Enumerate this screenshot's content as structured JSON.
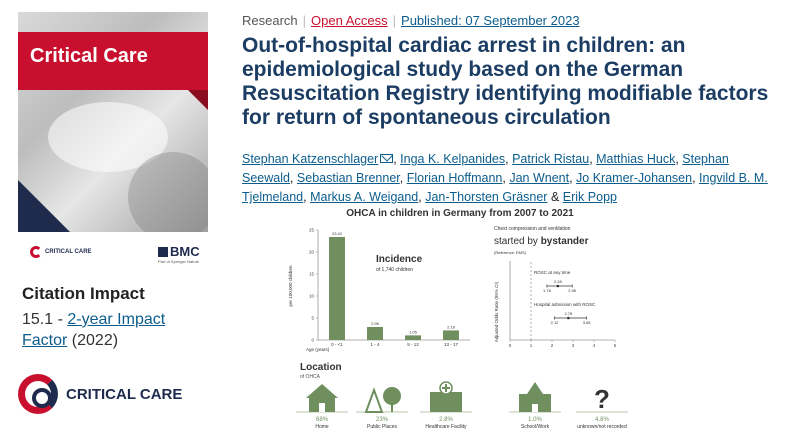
{
  "cover": {
    "journal_name": "Critical Care",
    "publisher_small_logo_text": "CRITICAL CARE",
    "publisher_logo_text": "BMC",
    "publisher_logo_subtitle": "Part of Springer Nature"
  },
  "citation": {
    "heading": "Citation Impact",
    "value": "15.1",
    "dash": "-",
    "link_text": "2-year Impact Factor",
    "year": "(2022)"
  },
  "brand_logo": {
    "text": "CRITICAL CARE"
  },
  "article": {
    "type": "Research",
    "access": "Open Access",
    "published": "Published: 07 September 2023",
    "title": "Out-of-hospital cardiac arrest in children: an epidemiological study based on the German Resuscitation Registry identifying modifiable factors for return of spontaneous circulation",
    "authors": [
      "Stephan Katzenschlager",
      "Inga K. Kelpanides",
      "Patrick Ristau",
      "Matthias Huck",
      "Stephan Seewald",
      "Sebastian Brenner",
      "Florian Hoffmann",
      "Jan Wnent",
      "Jo Kramer-Johansen",
      "Ingvild B. M. Tjelmeland",
      "Markus A. Weigand",
      "Jan-Thorsten Gräsner",
      "Erik Popp"
    ],
    "author_joiner": "&"
  },
  "infographic": {
    "title": "OHCA in children in Germany from 2007 to 2021",
    "incidence_heading": "Incidence",
    "incidence_sub": "of 1,740 children",
    "y_axis_label": "per 100,000 children",
    "x_axis_label": "Age (years)",
    "forest_header_small": "Chest compression and ventilation",
    "forest_header_big_prefix": "started by",
    "forest_header_big_bold": "bystander",
    "forest_reference": "(Reference: EMS)",
    "forest_y_label": "Adjusted Odds Ratio (95% CI)",
    "location_heading": "Location",
    "location_sub": "of OHCA",
    "locations": [
      {
        "pct": "68%",
        "label": "Home",
        "icon": "house-icon"
      },
      {
        "pct": "23%",
        "label": "Public Places",
        "icon": "park-icon"
      },
      {
        "pct": "2.8%",
        "label": "Healthcare Facility",
        "icon": "hospital-icon"
      },
      {
        "pct": "1.0%",
        "label": "School/Work",
        "icon": "school-icon"
      },
      {
        "pct": "4.8%",
        "label": "unknown/not recorded",
        "icon": "question-icon"
      }
    ]
  },
  "chart_data": [
    {
      "type": "bar",
      "title": "Incidence",
      "subtitle": "of 1,740 children",
      "categories": [
        "0 - <1",
        "1 - 4",
        "5 - 12",
        "13 - 17"
      ],
      "values": [
        23.42,
        2.96,
        1.05,
        2.18
      ],
      "xlabel": "Age (years)",
      "ylabel": "per 100,000 children",
      "ylim": [
        0,
        25
      ],
      "yticks": [
        0,
        5,
        10,
        15,
        20,
        25
      ],
      "color": "#6f8f5e"
    },
    {
      "type": "scatter",
      "title": "started by bystander",
      "subtitle": "Chest compression and ventilation",
      "ylabel": "Adjusted Odds Ratio (95% CI)",
      "xlim": [
        0,
        5
      ],
      "xticks": [
        0,
        1,
        2,
        3,
        4,
        5
      ],
      "reference_line": 1,
      "series": [
        {
          "name": "ROSC at any time",
          "estimate": 2.28,
          "ci_low": 1.76,
          "ci_high": 2.96
        },
        {
          "name": "Hospital admission with ROSC",
          "estimate": 2.78,
          "ci_low": 2.12,
          "ci_high": 3.65
        }
      ]
    }
  ]
}
